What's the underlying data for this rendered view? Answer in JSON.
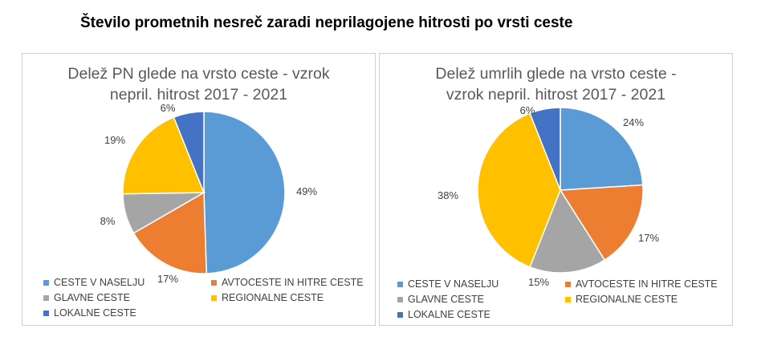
{
  "page_title": "Število prometnih nesreč zaradi neprilagojene hitrosti po vrsti ceste",
  "legend_labels": [
    "CESTE V NASELJU",
    "AVTOCESTE IN HITRE CESTE",
    "GLAVNE CESTE",
    "REGIONALNE CESTE",
    "LOKALNE CESTE"
  ],
  "colors": [
    "#5b9bd5",
    "#ed7d31",
    "#a5a5a5",
    "#ffc000",
    "#4472c4"
  ],
  "chart_data": [
    {
      "type": "pie",
      "title_line1": "Delež PN glede na vrsto ceste - vzrok",
      "title_line2": "nepril. hitrost 2017 - 2021",
      "categories": [
        "CESTE V NASELJU",
        "AVTOCESTE IN HITRE CESTE",
        "GLAVNE CESTE",
        "REGIONALNE CESTE",
        "LOKALNE CESTE"
      ],
      "values": [
        49,
        17,
        8,
        19,
        6
      ],
      "labels": [
        "49%",
        "17%",
        "8%",
        "19%",
        "6%"
      ],
      "legend_position": "bottom"
    },
    {
      "type": "pie",
      "title_line1": "Delež umrlih glede na vrsto ceste -",
      "title_line2": "vzrok nepril. hitrost 2017 - 2021",
      "categories": [
        "CESTE V NASELJU",
        "AVTOCESTE IN HITRE CESTE",
        "GLAVNE CESTE",
        "REGIONALNE CESTE",
        "LOKALNE CESTE"
      ],
      "values": [
        24,
        17,
        15,
        38,
        6
      ],
      "labels": [
        "24%",
        "17%",
        "15%",
        "38%",
        "6%"
      ],
      "legend_position": "bottom"
    }
  ]
}
